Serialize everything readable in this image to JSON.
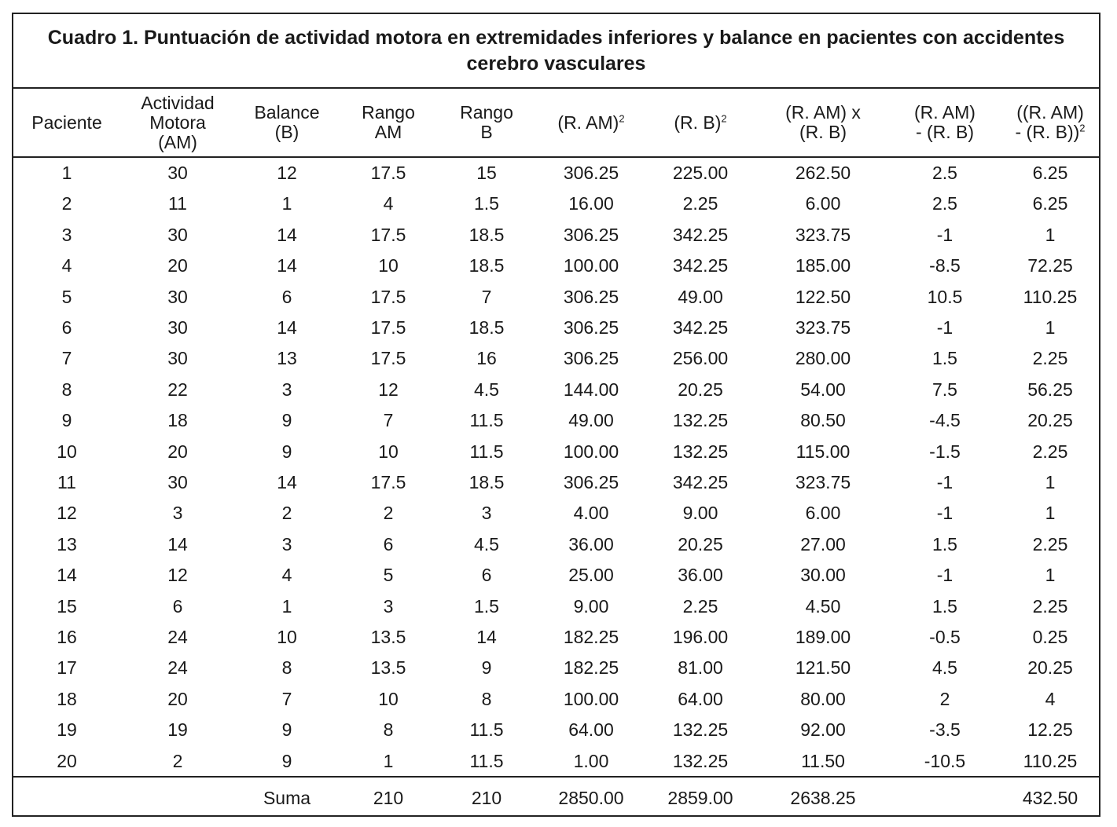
{
  "title": "Cuadro 1. Puntuación de actividad motora en extremidades inferiores y balance en pacientes con accidentes cerebro vasculares",
  "headers": [
    {
      "text": "Paciente",
      "sup": ""
    },
    {
      "text": "Actividad\nMotora\n(AM)",
      "sup": ""
    },
    {
      "text": "Balance\n(B)",
      "sup": ""
    },
    {
      "text": "Rango\nAM",
      "sup": ""
    },
    {
      "text": "Rango\nB",
      "sup": ""
    },
    {
      "text": "(R. AM)",
      "sup": "2"
    },
    {
      "text": "(R. B)",
      "sup": "2"
    },
    {
      "text": "(R. AM) x\n(R. B)",
      "sup": ""
    },
    {
      "text": "(R. AM)\n- (R. B)",
      "sup": ""
    },
    {
      "text": "((R. AM)\n- (R. B))",
      "sup": "2"
    }
  ],
  "rows": [
    [
      "1",
      "30",
      "12",
      "17.5",
      "15",
      "306.25",
      "225.00",
      "262.50",
      "2.5",
      "6.25"
    ],
    [
      "2",
      "11",
      "1",
      "4",
      "1.5",
      "16.00",
      "2.25",
      "6.00",
      "2.5",
      "6.25"
    ],
    [
      "3",
      "30",
      "14",
      "17.5",
      "18.5",
      "306.25",
      "342.25",
      "323.75",
      "-1",
      "1"
    ],
    [
      "4",
      "20",
      "14",
      "10",
      "18.5",
      "100.00",
      "342.25",
      "185.00",
      "-8.5",
      "72.25"
    ],
    [
      "5",
      "30",
      "6",
      "17.5",
      "7",
      "306.25",
      "49.00",
      "122.50",
      "10.5",
      "110.25"
    ],
    [
      "6",
      "30",
      "14",
      "17.5",
      "18.5",
      "306.25",
      "342.25",
      "323.75",
      "-1",
      "1"
    ],
    [
      "7",
      "30",
      "13",
      "17.5",
      "16",
      "306.25",
      "256.00",
      "280.00",
      "1.5",
      "2.25"
    ],
    [
      "8",
      "22",
      "3",
      "12",
      "4.5",
      "144.00",
      "20.25",
      "54.00",
      "7.5",
      "56.25"
    ],
    [
      "9",
      "18",
      "9",
      "7",
      "11.5",
      "49.00",
      "132.25",
      "80.50",
      "-4.5",
      "20.25"
    ],
    [
      "10",
      "20",
      "9",
      "10",
      "11.5",
      "100.00",
      "132.25",
      "115.00",
      "-1.5",
      "2.25"
    ],
    [
      "11",
      "30",
      "14",
      "17.5",
      "18.5",
      "306.25",
      "342.25",
      "323.75",
      "-1",
      "1"
    ],
    [
      "12",
      "3",
      "2",
      "2",
      "3",
      "4.00",
      "9.00",
      "6.00",
      "-1",
      "1"
    ],
    [
      "13",
      "14",
      "3",
      "6",
      "4.5",
      "36.00",
      "20.25",
      "27.00",
      "1.5",
      "2.25"
    ],
    [
      "14",
      "12",
      "4",
      "5",
      "6",
      "25.00",
      "36.00",
      "30.00",
      "-1",
      "1"
    ],
    [
      "15",
      "6",
      "1",
      "3",
      "1.5",
      "9.00",
      "2.25",
      "4.50",
      "1.5",
      "2.25"
    ],
    [
      "16",
      "24",
      "10",
      "13.5",
      "14",
      "182.25",
      "196.00",
      "189.00",
      "-0.5",
      "0.25"
    ],
    [
      "17",
      "24",
      "8",
      "13.5",
      "9",
      "182.25",
      "81.00",
      "121.50",
      "4.5",
      "20.25"
    ],
    [
      "18",
      "20",
      "7",
      "10",
      "8",
      "100.00",
      "64.00",
      "80.00",
      "2",
      "4"
    ],
    [
      "19",
      "19",
      "9",
      "8",
      "11.5",
      "64.00",
      "132.25",
      "92.00",
      "-3.5",
      "12.25"
    ],
    [
      "20",
      "2",
      "9",
      "1",
      "11.5",
      "1.00",
      "132.25",
      "11.50",
      "-10.5",
      "110.25"
    ]
  ],
  "sum_row": [
    "",
    "",
    "Suma",
    "210",
    "210",
    "2850.00",
    "2859.00",
    "2638.25",
    "",
    "432.50"
  ]
}
